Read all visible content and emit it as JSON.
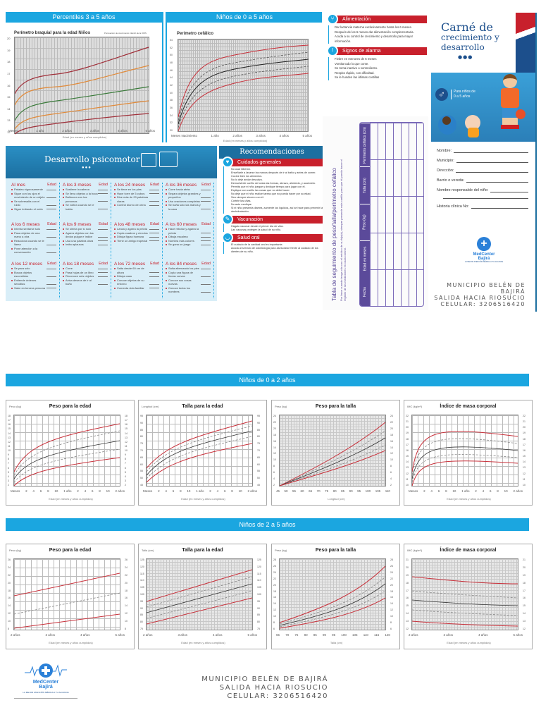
{
  "top": {
    "percentiles_header": "Percentiles 3 a 5 años",
    "arm_chart": {
      "title": "Perímetro braquial para la edad Niños",
      "subtitle": "Puntuación de crecimiento infantil de la OMS",
      "yticks": [
        "20",
        "19",
        "18",
        "17",
        "16",
        "15",
        "14",
        "13",
        "12"
      ],
      "xticks": [
        "Meses",
        "1 año",
        "2 años",
        "3 años",
        "4 años",
        "5 años"
      ],
      "xlabel": "Edad (en meses y años cumplidos)",
      "ylabel": "Perímetro braquial (cm)"
    },
    "head_header": "Niños de 0 a 5 años",
    "head_chart": {
      "title": "Perímetro cefálico",
      "yticks": [
        "54",
        "52",
        "50",
        "48",
        "46",
        "44",
        "42",
        "40",
        "38",
        "36",
        "34",
        "32",
        "30"
      ],
      "xticks": [
        "Meses Nacimiento",
        "1 año",
        "2 años",
        "3 años",
        "4 años",
        "5 años"
      ],
      "xlabel": "Edad (en meses y años cumplidos)",
      "ylabel": "Perímetro cefálico (cm)"
    }
  },
  "info": {
    "alimentacion": {
      "title": "Alimentación",
      "items": [
        "Dar lactancia materna exclusivamente hasta los 6 meses.",
        "Después de los 6 meses dar alimentación complementaria.",
        "Acuda a su control de crecimiento y desarrollo para mayor información."
      ]
    },
    "alarma": {
      "title": "Signos de alarma",
      "items": [
        "Fiebre en menores de 6 meses",
        "Vomita todo lo que come.",
        "Se torna inactivo o somnoliento.",
        "Respira rápido, con dificultad.",
        "Se le hunden las últimas costillas"
      ]
    }
  },
  "cover": {
    "title_line1": "Carné de",
    "title_line2": "crecimiento y",
    "title_line3": "desarrollo",
    "dots": "●●●",
    "gender_symbol": "♂",
    "for_text_1": "Para niños de",
    "for_text_2": "0 a 5 años",
    "fields": [
      "Nombre:",
      "Municipio:",
      "Dirección:",
      "Barrio o vereda:",
      "Nombre responsable del niño:",
      "",
      "Historia clínica No:"
    ],
    "brand_name": "MedCenter",
    "brand_city": "Bajirá",
    "brand_tagline": "LA MEJOR ATENCIÓN MÉDICA A TU ALCANCE",
    "address_1": "MUNICIPIO BELÉN DE BAJIRÁ",
    "address_2": "SALIDA HACIA RIOSUCIO",
    "address_3": "CELULAR: 3206516420"
  },
  "psicomotor": {
    "title": "Desarrollo psicomotor",
    "dots": "●●●",
    "edad_label": "Edad",
    "sections": [
      {
        "title": "Al mes",
        "items": [
          "Patalea vigorosamente",
          "Sigue con los ojos el movimiento de un objeto",
          "Se sobresalta con el ruido",
          "Sigue imitando el ruido"
        ]
      },
      {
        "title": "A los 3 meses",
        "items": [
          "Sostiene la cabeza",
          "Se lleva objetos a la boca",
          "Balbucea con las personas",
          "Se voltea cuando se le habla"
        ]
      },
      {
        "title": "A los 24 meses",
        "items": [
          "Se tiene en los pies",
          "Hace torre de 5 cubos",
          "Dice más de 20 palabras claras",
          "Control diurno de orina"
        ]
      },
      {
        "title": "A los 36 meses",
        "items": [
          "Corre hacia atrás",
          "Separa objetos grandes y pequeños",
          "Usa oraciones completas",
          "Se baña solo las manos y la cara"
        ]
      },
      {
        "title": "A los 6 meses",
        "items": [
          "Intenta sentarse solo",
          "Pasa objetos de una mano a otra",
          "Reacciona cuando se le llama",
          "Pone atención a la conversación"
        ]
      },
      {
        "title": "A los 9 meses",
        "items": [
          "Se sienta por sí solo",
          "Agarra objetos con los dedos pulgar e índice",
          "Usa una palabra clara",
          "Imita aplausos"
        ]
      },
      {
        "title": "A los 48 meses",
        "items": [
          "Lanza y agarra la pelota",
          "Copia cuadros y círculos",
          "Dibuja figura humana",
          "Tiene un amigo especial"
        ]
      },
      {
        "title": "A los 60 meses",
        "items": [
          "Hace rebotar y agarra la pelota",
          "Dibuja escalera",
          "Nombra más colores",
          "Se gana un juego"
        ]
      },
      {
        "title": "A los 12 meses",
        "items": [
          "Se para solo",
          "Busca objetos escondidos",
          "Entiende órdenes sencillas",
          "Sabe en tercera persona"
        ]
      },
      {
        "title": "A los 18 meses",
        "items": [
          "Corre",
          "Pasa hojas de un libro",
          "Reconoce seis objetos",
          "Avisa deseos de ir al baño"
        ]
      },
      {
        "title": "A los 72 meses",
        "items": [
          "Salta desde 60 cm de altura",
          "Dibuja casa",
          "Conoce objetos de su entorno",
          "Comenta vida familiar"
        ]
      },
      {
        "title": "A los 84 meses",
        "items": [
          "Salta alternando los pies",
          "Copia una figura de líneas curvas",
          "Conoce sus cosas nuevas",
          "Conoce todos los nombres"
        ]
      }
    ]
  },
  "recomendaciones": {
    "title": "Recomendaciones",
    "cuidados": {
      "title": "Cuidados generales",
      "items": [
        "No usar biberón.",
        "Enseñarle a lavarse las manos después de ir al baño y antes de comer.",
        "Cocine bien los alimentos.",
        "No lo deje andar descalzo.",
        "Demuéstrele cariño de todas las formas, abrazo, alrededo, y acarícielo.",
        "Permita que el niño juegue y dedique tiempo para jugar con él.",
        "Explique con cariño las cosas que no debe hacer.",
        "No deje que el niño realice tareas que no pueda hacer por su edad.",
        "Sea siempre sincero con él.",
        "Córtele las uñas.",
        "No auto medique.",
        "Si el niño presenta diarrea, aumente los líquidos, así se hace para prevenir la deshidratación."
      ]
    },
    "vacunacion": {
      "title": "Vacunación",
      "items": [
        "Hágalo vacunar desde el primer día de vida.",
        "Las vacunas protegen la salud de su niño."
      ]
    },
    "salud_oral": {
      "title": "Salud oral",
      "items": [
        "El cuidado de la cavidad oral es importante.",
        "Acuda al servicio de odontología para asesorarse frente al cuidado de los dientes de su niño."
      ]
    }
  },
  "tracking": {
    "title": "Tabla de seguimiento de peso/talla/perímetro cefálico",
    "note": "Por favor cuando tenga cita con el médico de su hijo(a), siempre presente esta cartilla para que él pueda hacer el registro de las mediciones en cada control.",
    "columns": [
      "Fecha",
      "Edad en meses",
      "Peso (kg)",
      "Talla (cm)",
      "Perímetro cefálico (cm)"
    ]
  },
  "section_0_2": {
    "header": "Niños de 0 a 2 años",
    "charts": [
      {
        "title": "Peso para la edad",
        "ylabel": "Peso (kg)",
        "xlabel": "Edad (en meses y años cumplidos)",
        "yticks": [
          "18",
          "17",
          "16",
          "15",
          "14",
          "13",
          "12",
          "11",
          "10",
          "9",
          "8",
          "7",
          "6",
          "5",
          "4",
          "3",
          "2"
        ],
        "xticks": [
          "Meses",
          "2",
          "4",
          "6",
          "8",
          "10",
          "1 año",
          "2",
          "4",
          "6",
          "8",
          "10",
          "2 años"
        ]
      },
      {
        "title": "Talla para la edad",
        "ylabel": "Longitud (cm)",
        "xlabel": "Edad (en meses y años cumplidos)",
        "yticks": [
          "95",
          "90",
          "85",
          "80",
          "75",
          "70",
          "65",
          "60",
          "55",
          "50",
          "45"
        ],
        "xticks": [
          "Meses",
          "2",
          "4",
          "6",
          "8",
          "10",
          "1 año",
          "2",
          "4",
          "6",
          "8",
          "10",
          "2 años"
        ]
      },
      {
        "title": "Peso para la talla",
        "ylabel": "Peso (kg)",
        "xlabel": "Longitud (cm)",
        "yticks": [
          "24",
          "22",
          "20",
          "18",
          "16",
          "14",
          "12",
          "10",
          "8",
          "6",
          "4",
          "2"
        ],
        "xticks": [
          "45",
          "50",
          "55",
          "60",
          "65",
          "70",
          "75",
          "80",
          "85",
          "90",
          "95",
          "100",
          "105",
          "110"
        ]
      },
      {
        "title": "Índice de masa corporal",
        "ylabel": "IMC (kg/m²)",
        "xlabel": "Edad (en meses y años cumplidos)",
        "yticks": [
          "22",
          "21",
          "20",
          "19",
          "18",
          "17",
          "16",
          "15",
          "14",
          "13",
          "12",
          "11",
          "10"
        ],
        "xticks": [
          "Meses",
          "2",
          "4",
          "6",
          "8",
          "10",
          "1 año",
          "2",
          "4",
          "6",
          "8",
          "10",
          "2 años"
        ]
      }
    ]
  },
  "section_2_5": {
    "header": "Niños de 2 a 5 años",
    "charts": [
      {
        "title": "Peso para la edad",
        "ylabel": "Peso (kg)",
        "xlabel": "Edad (en meses y años cumplidos)",
        "yticks": [
          "26",
          "24",
          "22",
          "20",
          "18",
          "16",
          "14",
          "12",
          "10",
          "8"
        ],
        "xticks": [
          "2 años",
          "3 años",
          "4 años",
          "5 años"
        ]
      },
      {
        "title": "Talla para la edad",
        "ylabel": "Talla (cm)",
        "xlabel": "Edad (en meses y años cumplidos)",
        "yticks": [
          "125",
          "120",
          "115",
          "110",
          "105",
          "100",
          "95",
          "90",
          "85",
          "80",
          "75"
        ],
        "xticks": [
          "2 años",
          "3 años",
          "4 años",
          "5 años"
        ]
      },
      {
        "title": "Peso para la talla",
        "ylabel": "Peso (kg)",
        "xlabel": "Talla (cm)",
        "yticks": [
          "28",
          "26",
          "24",
          "22",
          "20",
          "18",
          "16",
          "14",
          "12",
          "10",
          "8",
          "6"
        ],
        "xticks": [
          "65",
          "70",
          "75",
          "80",
          "85",
          "90",
          "95",
          "100",
          "105",
          "110",
          "115",
          "120"
        ]
      },
      {
        "title": "Índice de masa corporal",
        "ylabel": "IMC (kg/m²)",
        "xlabel": "Edad (en meses y años cumplidos)",
        "yticks": [
          "21",
          "20",
          "19",
          "18",
          "17",
          "16",
          "15",
          "14",
          "13",
          "12"
        ],
        "xticks": [
          "2 años",
          "3 años",
          "4 años",
          "5 años"
        ]
      }
    ]
  },
  "footer": {
    "brand_name": "MedCenter",
    "brand_city": "Bajirá",
    "brand_tagline": "LA MEJOR ATENCIÓN MÉDICA A TU ALCANCE",
    "address_1": "MUNICIPIO BELÉN DE BAJIRÁ",
    "address_2": "SALIDA HACIA RIOSUCIO",
    "address_3": "CELULAR: 3206516420"
  },
  "colors": {
    "accent_blue": "#1ba6e0",
    "alert_red": "#c8202c",
    "purple": "#5b4a9a",
    "cover_navy": "#1c4f8c"
  }
}
